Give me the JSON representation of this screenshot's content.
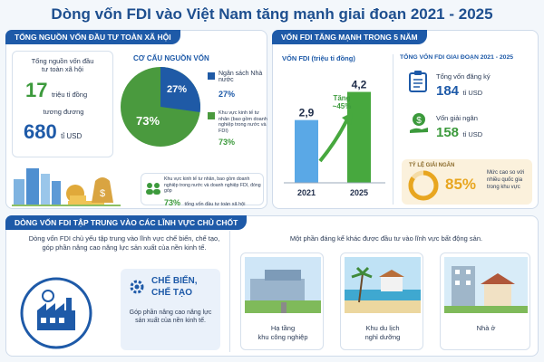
{
  "title": "Dòng vốn FDI vào Việt Nam tăng mạnh giai đoạn 2021 - 2025",
  "panel1": {
    "header": "TỔNG NGUỒN VỐN ĐẦU TƯ TOÀN XÃ HỘI",
    "total_label": "Tổng nguồn vốn đầu tư toàn xã hội",
    "total_value": "17",
    "total_unit": "triệu tỉ đồng",
    "equiv_label": "tương đương",
    "usd_value": "680",
    "usd_unit": "tỉ USD",
    "structure_title": "CƠ CẤU NGUỒN VỐN",
    "pie": {
      "state_pct": "27%",
      "private_pct": "73%"
    },
    "legend_state_label": "Ngân sách Nhà nước",
    "legend_state_value": "27%",
    "legend_private_label": "Khu vực kinh tế tư nhân (bao gồm doanh nghiệp trong nước và FDI)",
    "legend_private_value": "73%",
    "note_text": "Khu vực kinh tế tư nhân, bao gồm doanh nghiệp trong nước và doanh nghiệp FDI, đóng góp",
    "note_value": "73%",
    "note_suffix": "tổng vốn đầu tư toàn xã hội"
  },
  "panel2": {
    "header": "VỐN FDI TĂNG MẠNH TRONG 5 NĂM",
    "chart_label": "VỐN FDI (triệu tỉ đồng)",
    "increase_label": "Tăng",
    "increase_value": "~45%",
    "stats_title": "TỔNG VỐN FDI GIAI ĐOẠN 2021 - 2025",
    "registered_label": "Tổng vốn đăng ký",
    "registered_value": "184",
    "registered_unit": "tỉ USD",
    "disbursed_label": "Vốn giải ngân",
    "disbursed_value": "158",
    "disbursed_unit": "tỉ USD",
    "rate_title": "TỶ LỆ GIẢI NGÂN",
    "rate_value": "85%",
    "rate_note": "Mức cao so với nhiều quốc gia trong khu vực"
  },
  "chart_data": {
    "type": "bar",
    "categories": [
      "2021",
      "2025"
    ],
    "values": [
      2.9,
      4.2
    ],
    "value_labels": [
      "2,9",
      "4,2"
    ],
    "colors": [
      "#5aa8e6",
      "#47a83e"
    ],
    "ylim": [
      0,
      4.6
    ]
  },
  "panel3": {
    "header": "DÒNG VỐN FDI TẬP TRUNG VÀO CÁC LĨNH VỰC CHỦ CHỐT",
    "intro": "Dòng vốn FDI chủ yếu tập trung vào lĩnh vực chế biến, chế tạo, góp phần nâng cao năng lực sản xuất của nền kinh tế.",
    "sector_title_1": "CHẾ BIẾN,",
    "sector_title_2": "CHẾ TẠO",
    "sector_desc": "Góp phần nâng cao năng lực sản xuất của nền kinh tế.",
    "realestate_intro": "Một phần đáng kể khác được đầu tư vào lĩnh vực bất động sản.",
    "cards": [
      {
        "line1": "Hạ tầng",
        "line2": "khu công nghiệp"
      },
      {
        "line1": "Khu du lịch",
        "line2": "nghỉ dưỡng"
      },
      {
        "line1": "Nhà ở",
        "line2": ""
      }
    ]
  }
}
